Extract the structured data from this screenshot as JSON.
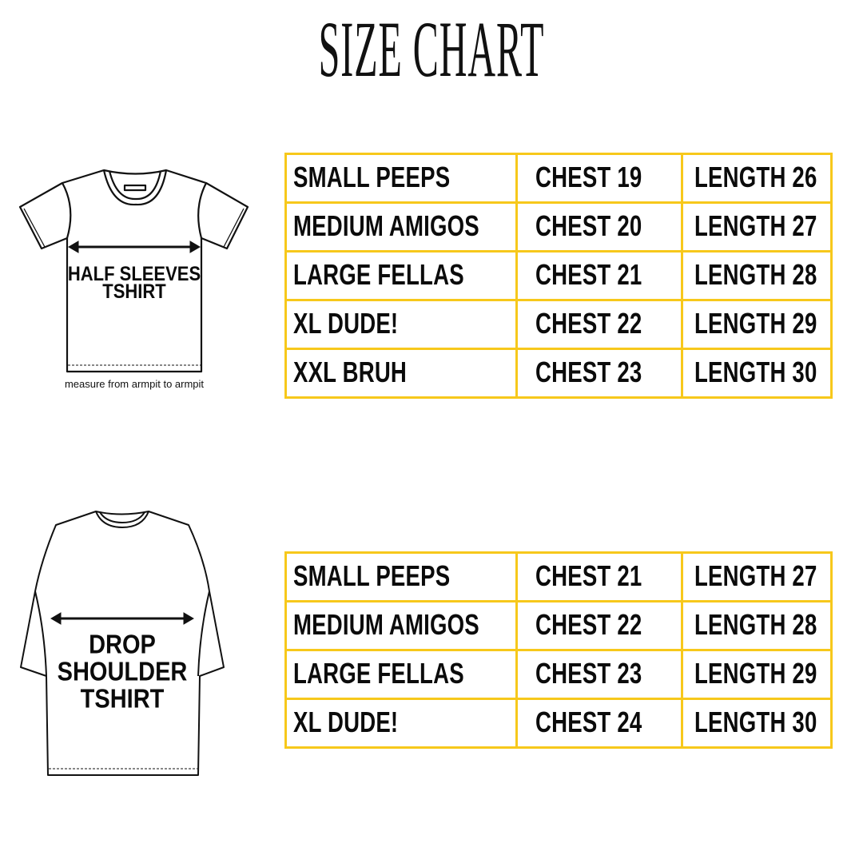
{
  "title": "SIZE CHART",
  "border_color": "#F7C81B",
  "half_sleeves": {
    "label_line1": "HALF SLEEVES",
    "label_line2": "TSHIRT",
    "note": "measure from armpit to armpit",
    "rows": [
      {
        "size": "SMALL PEEPS",
        "chest": "CHEST 19",
        "length": "LENGTH 26"
      },
      {
        "size": "MEDIUM AMIGOS",
        "chest": "CHEST 20",
        "length": "LENGTH 27"
      },
      {
        "size": "LARGE FELLAS",
        "chest": "CHEST 21",
        "length": "LENGTH 28"
      },
      {
        "size": "XL DUDE!",
        "chest": "CHEST 22",
        "length": "LENGTH 29"
      },
      {
        "size": "XXL BRUH",
        "chest": "CHEST 23",
        "length": "LENGTH 30"
      }
    ]
  },
  "drop_shoulder": {
    "label_line1": "DROP",
    "label_line2": "SHOULDER",
    "label_line3": "TSHIRT",
    "rows": [
      {
        "size": "SMALL PEEPS",
        "chest": "CHEST 21",
        "length": "LENGTH 27"
      },
      {
        "size": "MEDIUM AMIGOS",
        "chest": "CHEST 22",
        "length": "LENGTH 28"
      },
      {
        "size": "LARGE FELLAS",
        "chest": "CHEST 23",
        "length": "LENGTH 29"
      },
      {
        "size": "XL DUDE!",
        "chest": "CHEST 24",
        "length": "LENGTH 30"
      }
    ]
  }
}
